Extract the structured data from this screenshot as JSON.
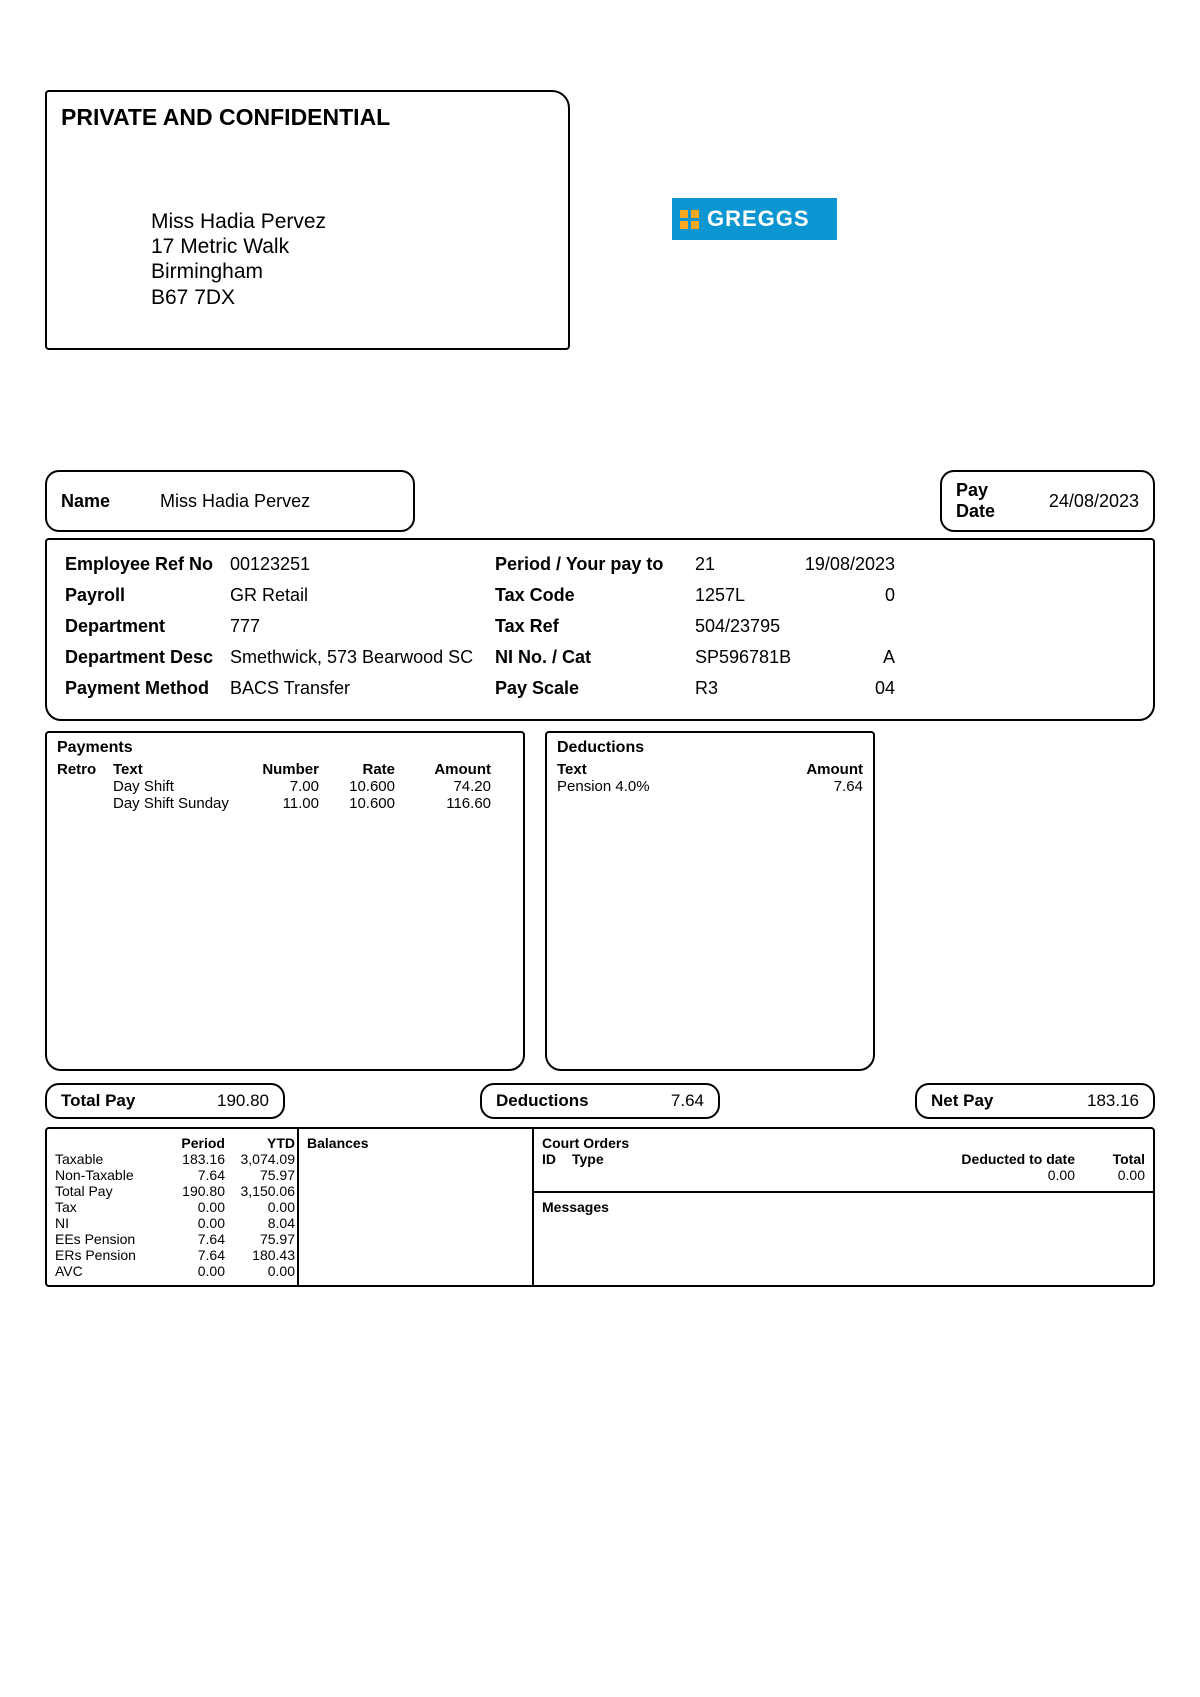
{
  "header": {
    "confidential": "PRIVATE AND CONFIDENTIAL",
    "name": "Miss Hadia Pervez",
    "addr1": "17 Metric Walk",
    "addr2": "Birmingham",
    "postcode": "B67 7DX"
  },
  "logo": {
    "text": "GREGGS"
  },
  "top": {
    "name_label": "Name",
    "name_value": "Miss Hadia Pervez",
    "paydate_label": "Pay Date",
    "paydate_value": "24/08/2023"
  },
  "details": {
    "emp_ref_label": "Employee Ref No",
    "emp_ref": "00123251",
    "payroll_label": "Payroll",
    "payroll": "GR   Retail",
    "dept_label": "Department",
    "dept": "777",
    "dept_desc_label": "Department Desc",
    "dept_desc": "Smethwick, 573 Bearwood SC",
    "pay_method_label": "Payment Method",
    "pay_method": "BACS Transfer",
    "period_label": "Period / Your pay to",
    "period_no": "21",
    "period_date": "19/08/2023",
    "taxcode_label": "Tax Code",
    "taxcode": "1257L",
    "taxcode2": "0",
    "taxref_label": "Tax Ref",
    "taxref": "504/23795",
    "taxref2": "",
    "ni_label": "NI No. / Cat",
    "ni_no": "SP596781B",
    "ni_cat": "A",
    "payscale_label": "Pay Scale",
    "payscale": "R3",
    "payscale2": "04"
  },
  "payments": {
    "title": "Payments",
    "head": {
      "retro": "Retro",
      "text": "Text",
      "number": "Number",
      "rate": "Rate",
      "amount": "Amount"
    },
    "rows": [
      {
        "retro": "",
        "text": "Day Shift",
        "number": "7.00",
        "rate": "10.600",
        "amount": "74.20"
      },
      {
        "retro": "",
        "text": "Day Shift Sunday",
        "number": "11.00",
        "rate": "10.600",
        "amount": "116.60"
      }
    ]
  },
  "deductions_panel": {
    "title": "Deductions",
    "head": {
      "text": "Text",
      "amount": "Amount"
    },
    "rows": [
      {
        "text": "Pension 4.0%",
        "amount": "7.64"
      }
    ]
  },
  "totals": {
    "total_pay_label": "Total Pay",
    "total_pay": "190.80",
    "deductions_label": "Deductions",
    "deductions": "7.64",
    "net_label": "Net Pay",
    "net": "183.16"
  },
  "ytd": {
    "head": {
      "blank": "",
      "period": "Period",
      "ytd": "YTD"
    },
    "rows": [
      {
        "label": "Taxable",
        "period": "183.16",
        "ytd": "3,074.09"
      },
      {
        "label": "Non-Taxable",
        "period": "7.64",
        "ytd": "75.97"
      },
      {
        "label": "Total Pay",
        "period": "190.80",
        "ytd": "3,150.06"
      },
      {
        "label": "Tax",
        "period": "0.00",
        "ytd": "0.00"
      },
      {
        "label": "NI",
        "period": "0.00",
        "ytd": "8.04"
      },
      {
        "label": "EEs Pension",
        "period": "7.64",
        "ytd": "75.97"
      },
      {
        "label": "ERs Pension",
        "period": "7.64",
        "ytd": "180.43"
      },
      {
        "label": "AVC",
        "period": "0.00",
        "ytd": "0.00"
      }
    ]
  },
  "balances": {
    "title": "Balances"
  },
  "court": {
    "title": "Court Orders",
    "head": {
      "id": "ID",
      "type": "Type",
      "dtd": "Deducted to date",
      "total": "Total"
    },
    "row": {
      "id": "",
      "type": "",
      "dtd": "0.00",
      "total": "0.00"
    }
  },
  "messages": {
    "title": "Messages"
  }
}
